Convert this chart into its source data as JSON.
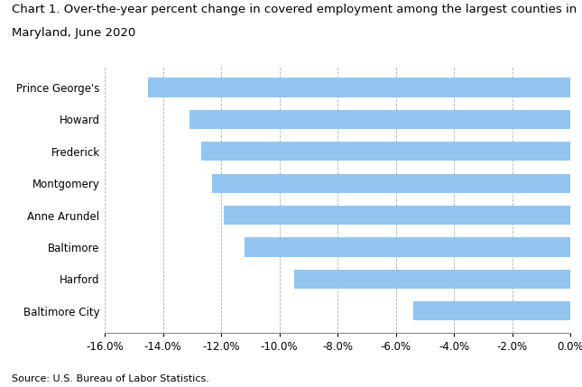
{
  "title_line1": "Chart 1. Over-the-year percent change in covered employment among the largest counties in",
  "title_line2": "Maryland, June 2020",
  "source": "Source: U.S. Bureau of Labor Statistics.",
  "categories": [
    "Prince George's",
    "Howard",
    "Frederick",
    "Montgomery",
    "Anne Arundel",
    "Baltimore",
    "Harford",
    "Baltimore City"
  ],
  "values": [
    -14.5,
    -13.1,
    -12.7,
    -12.3,
    -11.9,
    -11.2,
    -9.5,
    -5.4
  ],
  "bar_color": "#92C5F0",
  "bar_edgecolor": "none",
  "xlim": [
    -16.0,
    0.0
  ],
  "xticks": [
    -16.0,
    -14.0,
    -12.0,
    -10.0,
    -8.0,
    -6.0,
    -4.0,
    -2.0,
    0.0
  ],
  "grid_color": "#b0b0b0",
  "background_color": "#ffffff",
  "title_fontsize": 9.5,
  "tick_fontsize": 8.5,
  "source_fontsize": 8,
  "bar_height": 0.6
}
